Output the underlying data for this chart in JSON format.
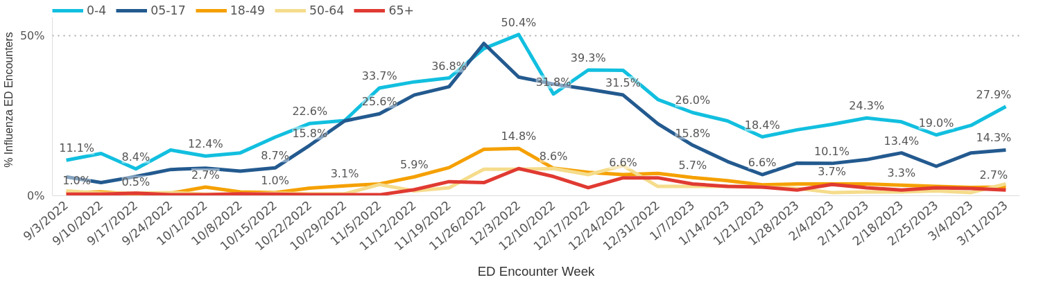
{
  "chart_data": {
    "type": "line",
    "xlabel": "ED Encounter Week",
    "ylabel": "% Influenza ED Encounters",
    "categories": [
      "9/3/2022",
      "9/10/2022",
      "9/17/2022",
      "9/24/2022",
      "10/1/2022",
      "10/8/2022",
      "10/15/2022",
      "10/22/2022",
      "10/29/2022",
      "11/5/2022",
      "11/12/2022",
      "11/19/2022",
      "11/26/2022",
      "12/3/2022",
      "12/10/2022",
      "12/17/2022",
      "12/24/2022",
      "12/31/2022",
      "1/7/2023",
      "1/14/2023",
      "1/21/2023",
      "1/28/2023",
      "2/4/2023",
      "2/11/2023",
      "2/18/2023",
      "2/25/2023",
      "3/4/2023",
      "3/11/2023"
    ],
    "ylim": [
      0,
      60
    ],
    "yticks": [
      {
        "value": 0,
        "label": "0%"
      },
      {
        "value": 50,
        "label": "50%"
      }
    ],
    "grid": "y",
    "legend": "top left",
    "marker": "none",
    "line_style": "solid",
    "tick_labels": "xy",
    "series": [
      {
        "name": "0-4",
        "color": "#12bfdf",
        "values": [
          11.1,
          13.2,
          8.4,
          14.3,
          12.4,
          13.4,
          18.3,
          22.6,
          23.5,
          33.7,
          35.6,
          36.8,
          46.0,
          50.4,
          31.8,
          39.3,
          39.2,
          30.1,
          26.0,
          23.4,
          18.4,
          20.6,
          22.3,
          24.3,
          23.1,
          19.0,
          22.0,
          27.9
        ],
        "value_labels": [
          "11.1%",
          null,
          "8.4%",
          null,
          "12.4%",
          null,
          null,
          "22.6%",
          null,
          "33.7%",
          null,
          "36.8%",
          null,
          "50.4%",
          "31.8%",
          "39.3%",
          null,
          null,
          "26.0%",
          null,
          "18.4%",
          null,
          null,
          "24.3%",
          null,
          "19.0%",
          null,
          "27.9%"
        ]
      },
      {
        "name": "05-17",
        "color": "#235a8f",
        "values": [
          5.9,
          4.1,
          6.0,
          8.2,
          8.6,
          7.7,
          8.7,
          15.8,
          23.4,
          25.6,
          31.5,
          34.1,
          47.6,
          37.1,
          34.9,
          33.3,
          31.5,
          22.5,
          15.8,
          10.7,
          6.6,
          10.2,
          10.1,
          11.3,
          13.4,
          9.2,
          13.4,
          14.3
        ],
        "value_labels": [
          null,
          null,
          null,
          null,
          null,
          null,
          "8.7%",
          "15.8%",
          null,
          "25.6%",
          null,
          null,
          null,
          null,
          null,
          null,
          "31.5%",
          null,
          "15.8%",
          null,
          "6.6%",
          null,
          "10.1%",
          null,
          "13.4%",
          null,
          null,
          "14.3%"
        ]
      },
      {
        "name": "18-49",
        "color": "#f5a000",
        "values": [
          1.0,
          1.2,
          0.5,
          0.8,
          2.7,
          1.2,
          1.0,
          2.4,
          3.1,
          3.7,
          5.9,
          8.8,
          14.5,
          14.8,
          8.6,
          7.3,
          6.6,
          7.0,
          5.7,
          4.7,
          3.4,
          3.7,
          3.7,
          3.7,
          3.3,
          2.9,
          2.6,
          2.7
        ],
        "value_labels": [
          "1.0%",
          null,
          "0.5%",
          null,
          "2.7%",
          null,
          "1.0%",
          null,
          "3.1%",
          null,
          "5.9%",
          null,
          null,
          "14.8%",
          "8.6%",
          null,
          "6.6%",
          null,
          "5.7%",
          null,
          null,
          null,
          "3.7%",
          null,
          "3.3%",
          null,
          null,
          "2.7%"
        ]
      },
      {
        "name": "50-64",
        "color": "#f5dc8c",
        "values": [
          1.5,
          0.8,
          0.8,
          1.0,
          0.5,
          0.5,
          0.8,
          0.6,
          0.6,
          3.5,
          1.5,
          2.5,
          8.3,
          8.3,
          8.5,
          6.6,
          9.4,
          2.9,
          2.9,
          3.0,
          2.7,
          2.3,
          1.0,
          1.2,
          1.2,
          1.5,
          1.0,
          3.7
        ]
      },
      {
        "name": "65+",
        "color": "#e03a32",
        "values": [
          0.5,
          0.5,
          0.8,
          0.3,
          0.3,
          0.6,
          0.5,
          0.3,
          0.3,
          0.3,
          1.9,
          4.4,
          4.1,
          8.5,
          6.0,
          2.5,
          5.6,
          5.6,
          3.7,
          2.9,
          2.7,
          1.8,
          3.5,
          2.5,
          1.8,
          2.5,
          2.3,
          1.8
        ]
      }
    ]
  }
}
